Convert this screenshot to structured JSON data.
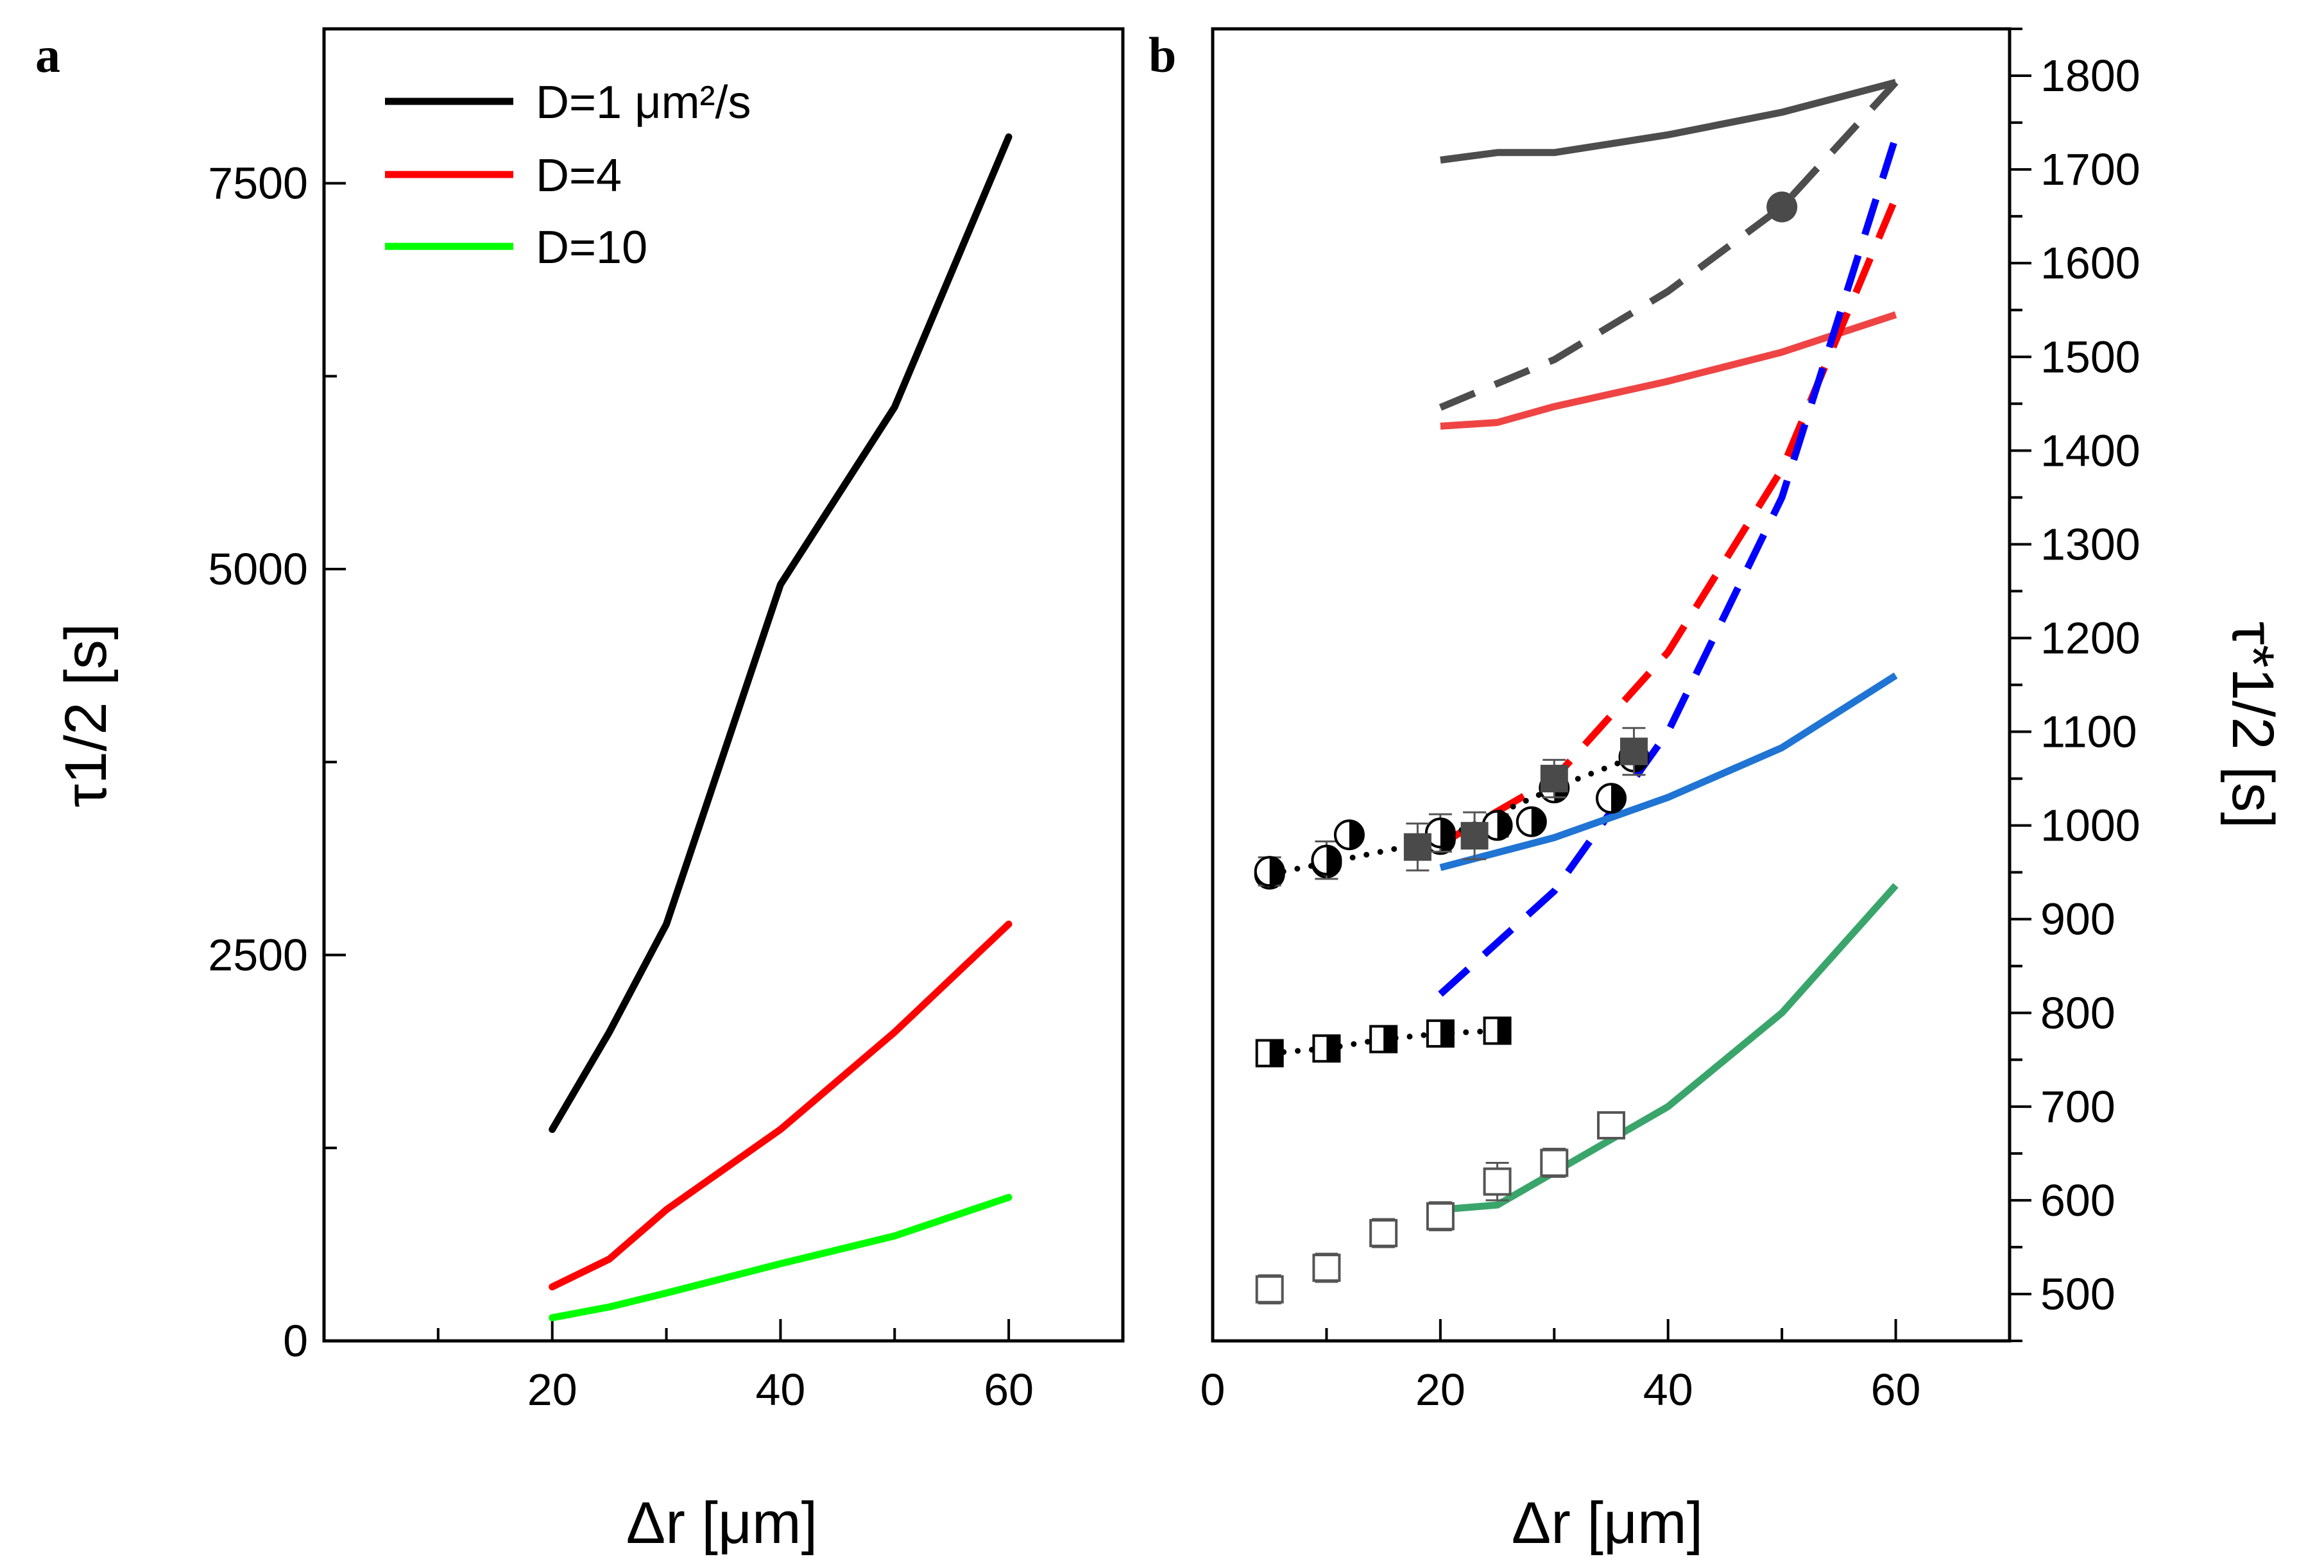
{
  "chart_data": [
    {
      "panel": "a",
      "type": "line",
      "xlabel": "Δr [μm]",
      "ylabel": "τ1/2 [s]",
      "xlim": [
        0,
        70
      ],
      "ylim": [
        0,
        8500
      ],
      "x_ticks": [
        20,
        40,
        60
      ],
      "y_ticks": [
        0,
        2500,
        5000,
        7500
      ],
      "legend": {
        "placement": "top-left",
        "entries": [
          "D=1 μm²/s",
          "D=4",
          "D=10"
        ]
      },
      "series": [
        {
          "name": "D=1 μm²/s",
          "color": "#000000",
          "x": [
            20,
            25,
            30,
            40,
            50,
            60
          ],
          "y": [
            1370,
            2000,
            2700,
            4900,
            6050,
            7800
          ]
        },
        {
          "name": "D=4",
          "color": "#ff0000",
          "x": [
            20,
            25,
            30,
            40,
            50,
            60
          ],
          "y": [
            350,
            530,
            850,
            1370,
            2000,
            2700
          ]
        },
        {
          "name": "D=10",
          "color": "#00ff00",
          "x": [
            20,
            25,
            30,
            40,
            50,
            60
          ],
          "y": [
            150,
            220,
            310,
            500,
            680,
            930
          ]
        }
      ]
    },
    {
      "panel": "b",
      "type": "line",
      "xlabel": "Δr [μm]",
      "ylabel_right": "τ*1/2 [s]",
      "xlim": [
        0,
        70
      ],
      "ylim": [
        450,
        1850
      ],
      "x_ticks": [
        0,
        20,
        40,
        60
      ],
      "y_ticks": [
        500,
        600,
        700,
        800,
        900,
        1000,
        1100,
        1200,
        1300,
        1400,
        1500,
        1600,
        1700,
        1800
      ],
      "series": [
        {
          "style": "solid",
          "color": "#4d4d4d",
          "x": [
            20,
            25,
            30,
            40,
            50,
            60
          ],
          "y": [
            1710,
            1718,
            1718,
            1737,
            1761,
            1793
          ]
        },
        {
          "style": "dashed",
          "color": "#4d4d4d",
          "x": [
            20,
            30,
            40,
            50,
            60
          ],
          "y": [
            1446,
            1497,
            1570,
            1660,
            1793
          ]
        },
        {
          "style": "solid",
          "color": "#ef4444",
          "x": [
            20,
            25,
            30,
            40,
            50,
            60
          ],
          "y": [
            1426,
            1430,
            1447,
            1474,
            1505,
            1545
          ]
        },
        {
          "style": "dashed",
          "color": "#ff0000",
          "x": [
            20,
            30,
            40,
            50,
            60
          ],
          "y": [
            980,
            1050,
            1185,
            1380,
            1670
          ]
        },
        {
          "style": "dashed",
          "color": "#0000ff",
          "x": [
            20,
            30,
            40,
            50,
            60
          ],
          "y": [
            820,
            930,
            1100,
            1350,
            1735
          ]
        },
        {
          "style": "solid",
          "color": "#1f74d4",
          "x": [
            20,
            30,
            40,
            50,
            60
          ],
          "y": [
            955,
            987,
            1030,
            1083,
            1160
          ]
        },
        {
          "style": "solid",
          "color": "#3aa56b",
          "x": [
            20,
            25,
            30,
            40,
            50,
            60
          ],
          "y": [
            590,
            595,
            630,
            700,
            800,
            936
          ]
        },
        {
          "marker": "circle-half",
          "style": "dotted",
          "color": "#000000",
          "x": [
            5,
            10,
            20,
            30,
            37
          ],
          "y": [
            948,
            960,
            985,
            1040,
            1073
          ]
        },
        {
          "marker": "circle-half",
          "color": "#000000",
          "x": [
            5,
            10,
            12,
            20,
            25,
            28,
            35
          ],
          "y": [
            951,
            963,
            990,
            992,
            1000,
            1004,
            1029
          ],
          "err": [
            15,
            20,
            8,
            20,
            12,
            8,
            8
          ]
        },
        {
          "marker": "square-filled",
          "color": "#4a4a4a",
          "x": [
            18,
            23,
            30,
            37
          ],
          "y": [
            977,
            989,
            1050,
            1079
          ],
          "err": [
            25,
            25,
            20,
            25
          ]
        },
        {
          "marker": "square-half",
          "style": "dotted",
          "color": "#000000",
          "x": [
            5,
            10,
            15,
            20,
            25
          ],
          "y": [
            757,
            762,
            772,
            778,
            781
          ],
          "err": [
            8,
            8,
            8,
            8,
            8
          ]
        },
        {
          "marker": "square-open",
          "color": "#555555",
          "x": [
            5,
            10,
            15,
            20,
            25,
            30,
            35
          ],
          "y": [
            505,
            528,
            565,
            583,
            620,
            640,
            680
          ],
          "err": [
            15,
            15,
            15,
            15,
            20,
            15,
            8
          ]
        },
        {
          "marker": "circle-filled",
          "color": "#4a4a4a",
          "x": [
            50
          ],
          "y": [
            1660
          ]
        }
      ]
    }
  ]
}
